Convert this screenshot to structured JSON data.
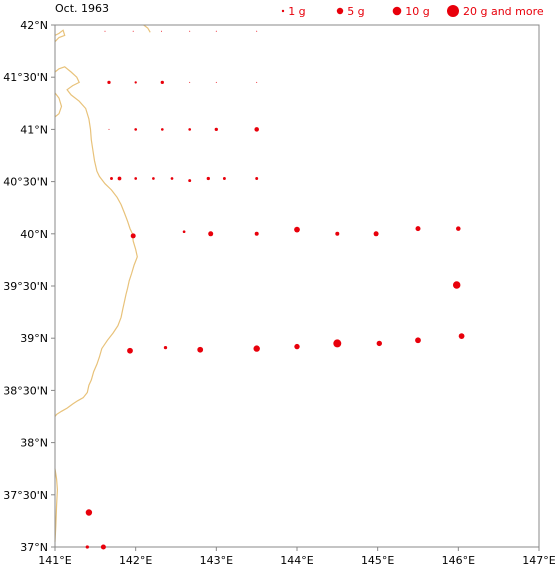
{
  "title": "Oct. 1963",
  "colors": {
    "dot": "#e8000b",
    "coast": "#e8c27a",
    "frame": "#888888",
    "text": "#000000"
  },
  "legend": [
    {
      "label": "1 g",
      "value": 1
    },
    {
      "label": "5 g",
      "value": 5
    },
    {
      "label": "10 g",
      "value": 10
    },
    {
      "label": "20 g and more",
      "value": 20
    }
  ],
  "axes": {
    "lon_range": [
      141,
      147
    ],
    "lat_range": [
      37,
      42
    ],
    "x_ticks": [
      {
        "v": 141,
        "label": "141°E"
      },
      {
        "v": 142,
        "label": "142°E"
      },
      {
        "v": 143,
        "label": "143°E"
      },
      {
        "v": 144,
        "label": "144°E"
      },
      {
        "v": 145,
        "label": "145°E"
      },
      {
        "v": 146,
        "label": "146°E"
      },
      {
        "v": 147,
        "label": "147°E"
      }
    ],
    "y_ticks": [
      {
        "v": 42,
        "label": "42°N"
      },
      {
        "v": 41.5,
        "label": "41°30'N"
      },
      {
        "v": 41,
        "label": "41°N"
      },
      {
        "v": 40.5,
        "label": "40°30'N"
      },
      {
        "v": 40,
        "label": "40°N"
      },
      {
        "v": 39.5,
        "label": "39°30'N"
      },
      {
        "v": 39,
        "label": "39°N"
      },
      {
        "v": 38.5,
        "label": "38°30'N"
      },
      {
        "v": 38,
        "label": "38°N"
      },
      {
        "v": 37.5,
        "label": "37°30'N"
      },
      {
        "v": 37,
        "label": "37°N"
      }
    ]
  },
  "samples": [
    {
      "lon": 141.62,
      "lat": 41.94,
      "value": 0.02
    },
    {
      "lon": 141.97,
      "lat": 41.94,
      "value": 0.02
    },
    {
      "lon": 142.32,
      "lat": 41.94,
      "value": 0.02
    },
    {
      "lon": 142.67,
      "lat": 41.94,
      "value": 0.02
    },
    {
      "lon": 143.0,
      "lat": 41.94,
      "value": 0.02
    },
    {
      "lon": 143.5,
      "lat": 41.94,
      "value": 0.02
    },
    {
      "lon": 141.67,
      "lat": 41.45,
      "value": 0.5
    },
    {
      "lon": 142.0,
      "lat": 41.45,
      "value": 0.1
    },
    {
      "lon": 142.33,
      "lat": 41.45,
      "value": 0.5
    },
    {
      "lon": 142.67,
      "lat": 41.45,
      "value": 0.02
    },
    {
      "lon": 143.0,
      "lat": 41.45,
      "value": 0.02
    },
    {
      "lon": 143.5,
      "lat": 41.45,
      "value": 0.02
    },
    {
      "lon": 141.67,
      "lat": 41.0,
      "value": 0.05
    },
    {
      "lon": 142.0,
      "lat": 41.0,
      "value": 0.2
    },
    {
      "lon": 142.33,
      "lat": 41.0,
      "value": 0.2
    },
    {
      "lon": 142.67,
      "lat": 41.0,
      "value": 0.2
    },
    {
      "lon": 143.0,
      "lat": 41.0,
      "value": 0.5
    },
    {
      "lon": 143.5,
      "lat": 41.0,
      "value": 1.5
    },
    {
      "lon": 141.7,
      "lat": 40.53,
      "value": 0.3
    },
    {
      "lon": 141.8,
      "lat": 40.53,
      "value": 0.8
    },
    {
      "lon": 142.0,
      "lat": 40.53,
      "value": 0.2
    },
    {
      "lon": 142.22,
      "lat": 40.53,
      "value": 0.2
    },
    {
      "lon": 142.45,
      "lat": 40.53,
      "value": 0.2
    },
    {
      "lon": 142.67,
      "lat": 40.51,
      "value": 0.3
    },
    {
      "lon": 142.9,
      "lat": 40.53,
      "value": 0.5
    },
    {
      "lon": 143.1,
      "lat": 40.53,
      "value": 0.3
    },
    {
      "lon": 143.5,
      "lat": 40.53,
      "value": 0.3
    },
    {
      "lon": 141.97,
      "lat": 39.98,
      "value": 2
    },
    {
      "lon": 142.6,
      "lat": 40.02,
      "value": 0.2
    },
    {
      "lon": 142.93,
      "lat": 40.0,
      "value": 2
    },
    {
      "lon": 143.5,
      "lat": 40.0,
      "value": 1
    },
    {
      "lon": 144.0,
      "lat": 40.04,
      "value": 3
    },
    {
      "lon": 144.5,
      "lat": 40.0,
      "value": 1
    },
    {
      "lon": 144.98,
      "lat": 40.0,
      "value": 2
    },
    {
      "lon": 145.5,
      "lat": 40.05,
      "value": 2
    },
    {
      "lon": 146.0,
      "lat": 40.05,
      "value": 1.5
    },
    {
      "lon": 145.98,
      "lat": 39.51,
      "value": 6
    },
    {
      "lon": 141.93,
      "lat": 38.88,
      "value": 3
    },
    {
      "lon": 142.37,
      "lat": 38.91,
      "value": 0.5
    },
    {
      "lon": 142.8,
      "lat": 38.89,
      "value": 3
    },
    {
      "lon": 143.5,
      "lat": 38.9,
      "value": 4
    },
    {
      "lon": 144.0,
      "lat": 38.92,
      "value": 2.5
    },
    {
      "lon": 144.5,
      "lat": 38.95,
      "value": 7
    },
    {
      "lon": 145.02,
      "lat": 38.95,
      "value": 2.5
    },
    {
      "lon": 145.5,
      "lat": 38.98,
      "value": 3
    },
    {
      "lon": 146.04,
      "lat": 39.02,
      "value": 3
    },
    {
      "lon": 141.42,
      "lat": 37.33,
      "value": 4
    },
    {
      "lon": 141.4,
      "lat": 37.0,
      "value": 0.5
    },
    {
      "lon": 141.6,
      "lat": 37.0,
      "value": 2
    }
  ],
  "coast": [
    [
      [
        141.0,
        41.9
      ],
      [
        141.05,
        41.92
      ],
      [
        141.1,
        41.95
      ],
      [
        141.12,
        41.9
      ],
      [
        141.05,
        41.88
      ],
      [
        141.0,
        41.84
      ]
    ],
    [
      [
        141.0,
        41.55
      ],
      [
        141.05,
        41.58
      ],
      [
        141.12,
        41.6
      ],
      [
        141.2,
        41.55
      ],
      [
        141.27,
        41.5
      ],
      [
        141.3,
        41.45
      ],
      [
        141.22,
        41.42
      ],
      [
        141.15,
        41.38
      ],
      [
        141.2,
        41.33
      ],
      [
        141.3,
        41.27
      ],
      [
        141.38,
        41.2
      ],
      [
        141.42,
        41.1
      ],
      [
        141.44,
        41.0
      ],
      [
        141.45,
        40.9
      ],
      [
        141.47,
        40.8
      ],
      [
        141.49,
        40.7
      ],
      [
        141.52,
        40.6
      ],
      [
        141.55,
        40.55
      ],
      [
        141.62,
        40.48
      ],
      [
        141.7,
        40.42
      ],
      [
        141.77,
        40.35
      ],
      [
        141.82,
        40.28
      ],
      [
        141.86,
        40.2
      ],
      [
        141.9,
        40.12
      ],
      [
        141.93,
        40.05
      ],
      [
        141.96,
        40.0
      ],
      [
        141.97,
        39.93
      ],
      [
        142.0,
        39.85
      ],
      [
        142.02,
        39.78
      ],
      [
        141.98,
        39.7
      ],
      [
        141.95,
        39.62
      ],
      [
        141.92,
        39.55
      ],
      [
        141.9,
        39.48
      ],
      [
        141.88,
        39.42
      ],
      [
        141.86,
        39.35
      ],
      [
        141.84,
        39.28
      ],
      [
        141.82,
        39.2
      ],
      [
        141.78,
        39.12
      ],
      [
        141.72,
        39.05
      ],
      [
        141.65,
        38.98
      ],
      [
        141.58,
        38.9
      ],
      [
        141.55,
        38.82
      ],
      [
        141.52,
        38.75
      ],
      [
        141.48,
        38.68
      ],
      [
        141.45,
        38.6
      ],
      [
        141.42,
        38.55
      ],
      [
        141.4,
        38.48
      ],
      [
        141.35,
        38.43
      ],
      [
        141.28,
        38.4
      ],
      [
        141.22,
        38.37
      ],
      [
        141.15,
        38.33
      ],
      [
        141.08,
        38.3
      ],
      [
        141.02,
        38.27
      ],
      [
        141.0,
        38.25
      ]
    ],
    [
      [
        141.0,
        41.35
      ],
      [
        141.05,
        41.3
      ],
      [
        141.08,
        41.22
      ],
      [
        141.05,
        41.15
      ],
      [
        141.0,
        41.12
      ]
    ],
    [
      [
        141.0,
        37.75
      ],
      [
        141.02,
        37.65
      ],
      [
        141.03,
        37.55
      ],
      [
        141.02,
        37.4
      ],
      [
        141.01,
        37.2
      ],
      [
        141.0,
        37.05
      ]
    ],
    [
      [
        142.1,
        42.0
      ],
      [
        142.15,
        41.97
      ],
      [
        142.18,
        41.93
      ]
    ]
  ]
}
